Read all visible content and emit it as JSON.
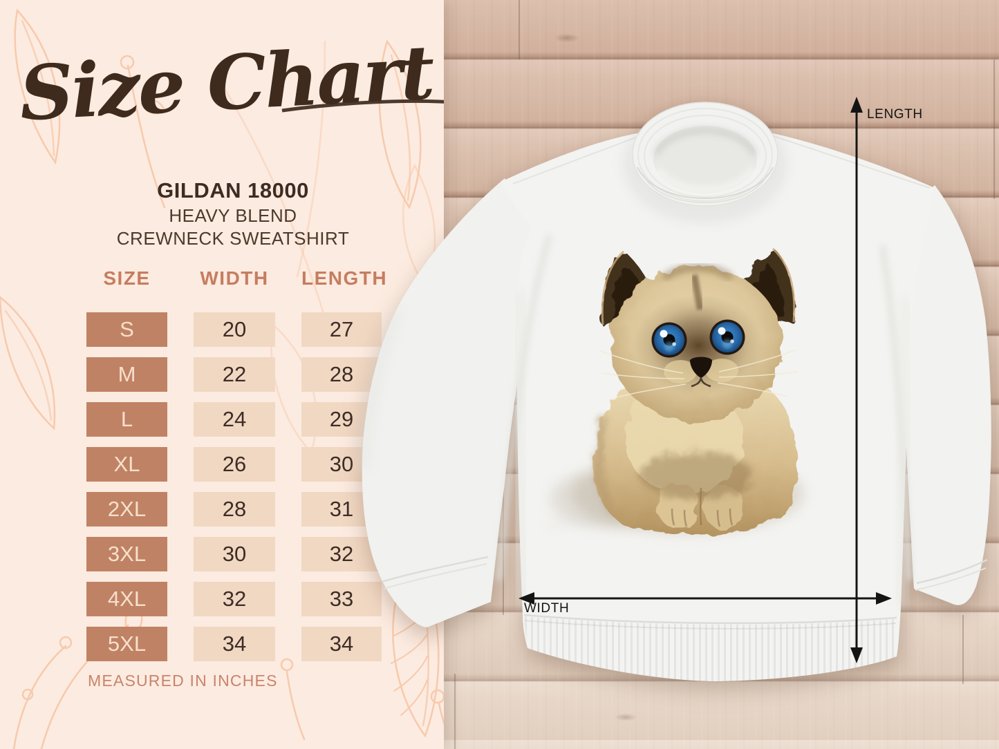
{
  "title": "Size Chart",
  "product": {
    "name": "GILDAN 18000",
    "line1": "HEAVY BLEND",
    "line2": "CREWNECK SWEATSHIRT"
  },
  "table": {
    "headers": [
      "SIZE",
      "WIDTH",
      "LENGTH"
    ],
    "rows": [
      {
        "size": "S",
        "width": "20",
        "length": "27"
      },
      {
        "size": "M",
        "width": "22",
        "length": "28"
      },
      {
        "size": "L",
        "width": "24",
        "length": "29"
      },
      {
        "size": "XL",
        "width": "26",
        "length": "30"
      },
      {
        "size": "2XL",
        "width": "28",
        "length": "31"
      },
      {
        "size": "3XL",
        "width": "30",
        "length": "32"
      },
      {
        "size": "4XL",
        "width": "32",
        "length": "33"
      },
      {
        "size": "5XL",
        "width": "34",
        "length": "34"
      }
    ],
    "note": "MEASURED IN INCHES"
  },
  "measurements": {
    "length_label": "LENGTH",
    "width_label": "WIDTH"
  },
  "scene": {
    "garment": "white crewneck sweatshirt laid flat on wood planks",
    "print": "watercolor cream kitten with dark ears and blue eyes"
  },
  "colors": {
    "panel_bg": "#fcebe0",
    "accent_terracotta": "#c57d60",
    "size_cell_bg": "#c08264",
    "value_cell_bg": "#f1d8c3",
    "dark_brown_text": "#3f2b1e",
    "arrow_black": "#141414"
  },
  "chart_data": {
    "type": "table",
    "title": "Size Chart",
    "subtitle": "Gildan 18000 Heavy Blend Crewneck Sweatshirt",
    "columns": [
      "SIZE",
      "WIDTH",
      "LENGTH"
    ],
    "units": "inches",
    "rows": [
      [
        "S",
        20,
        27
      ],
      [
        "M",
        22,
        28
      ],
      [
        "L",
        24,
        29
      ],
      [
        "XL",
        26,
        30
      ],
      [
        "2XL",
        28,
        31
      ],
      [
        "3XL",
        30,
        32
      ],
      [
        "4XL",
        32,
        33
      ],
      [
        "5XL",
        34,
        34
      ]
    ]
  }
}
